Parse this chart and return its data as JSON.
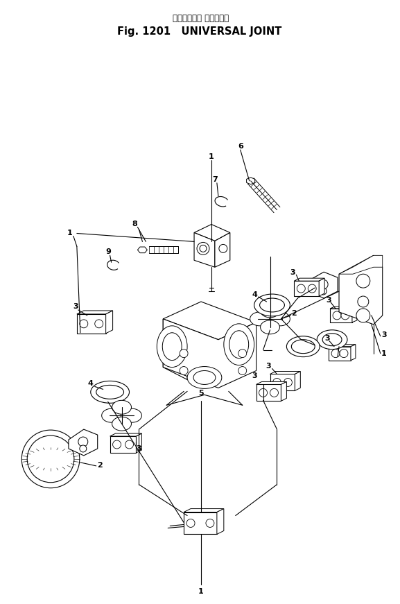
{
  "title_japanese": "ユニバーサル ジョイント",
  "title_english": "Fig. 1201   UNIVERSAL JOINT",
  "bg": "#ffffff",
  "lc": "#000000",
  "fw": 5.77,
  "fh": 8.71,
  "dpi": 100
}
